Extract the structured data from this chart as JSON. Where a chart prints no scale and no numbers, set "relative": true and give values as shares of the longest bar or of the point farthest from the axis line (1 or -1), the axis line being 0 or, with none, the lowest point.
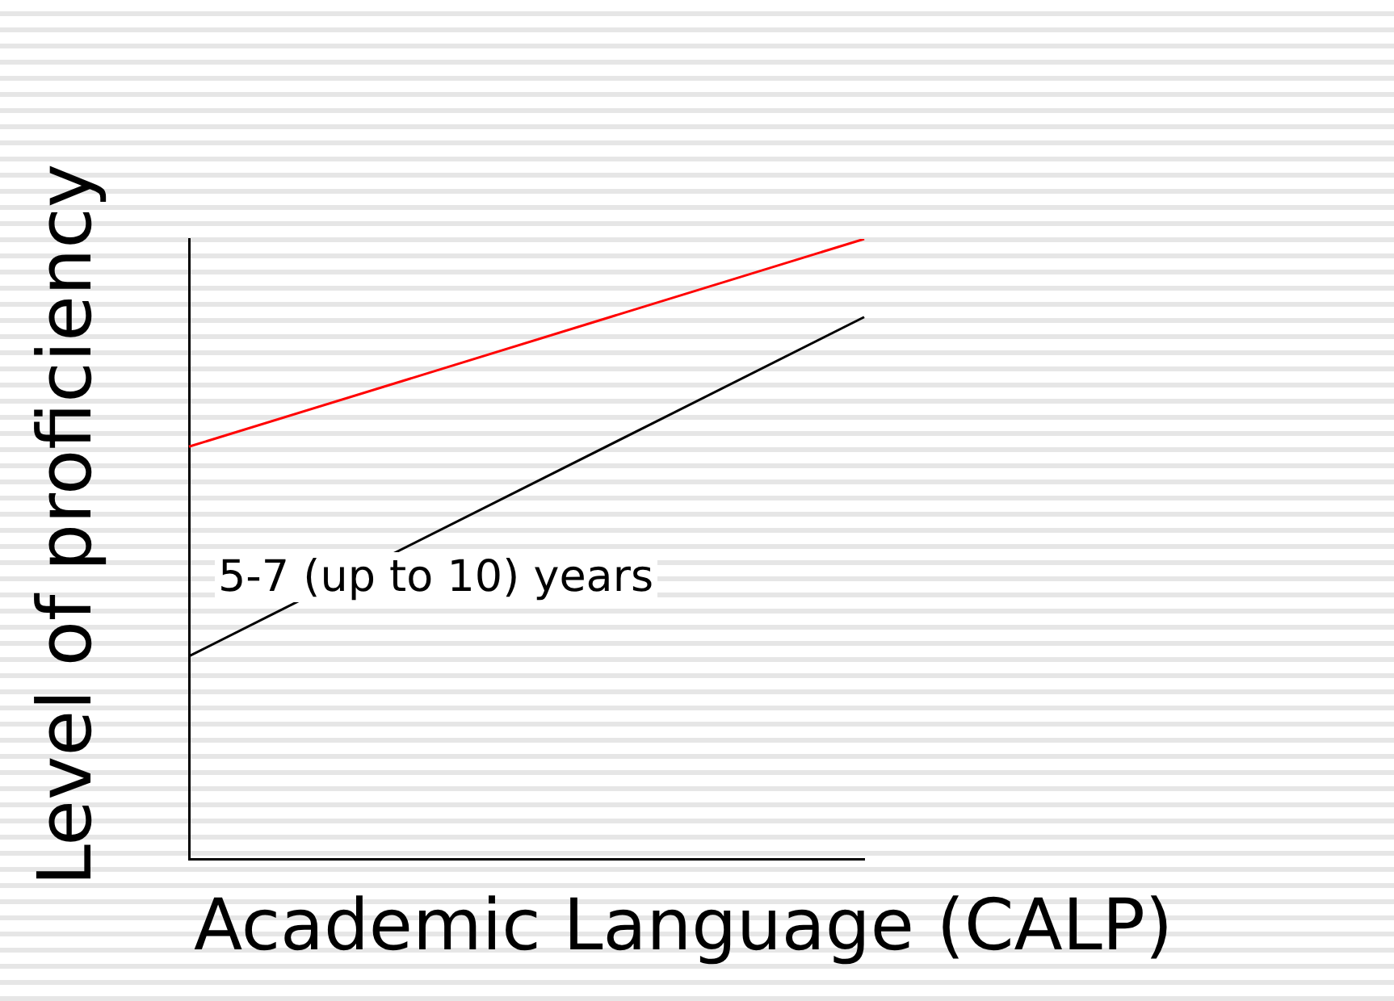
{
  "chart_data": {
    "type": "line",
    "relative": true,
    "xlabel": "Academic Language (CALP)",
    "ylabel": "Level of proficiency",
    "categories": [
      null,
      null
    ],
    "series": [
      {
        "color": "#ff0000",
        "values": [
          0.665,
          1
        ]
      },
      {
        "color": "#000000",
        "values": [
          0.327,
          0.874
        ]
      }
    ],
    "annotations": [
      "5-7 (up to 10) years"
    ],
    "grid": false,
    "legend": false,
    "marker": "none",
    "line_style": "solid"
  }
}
